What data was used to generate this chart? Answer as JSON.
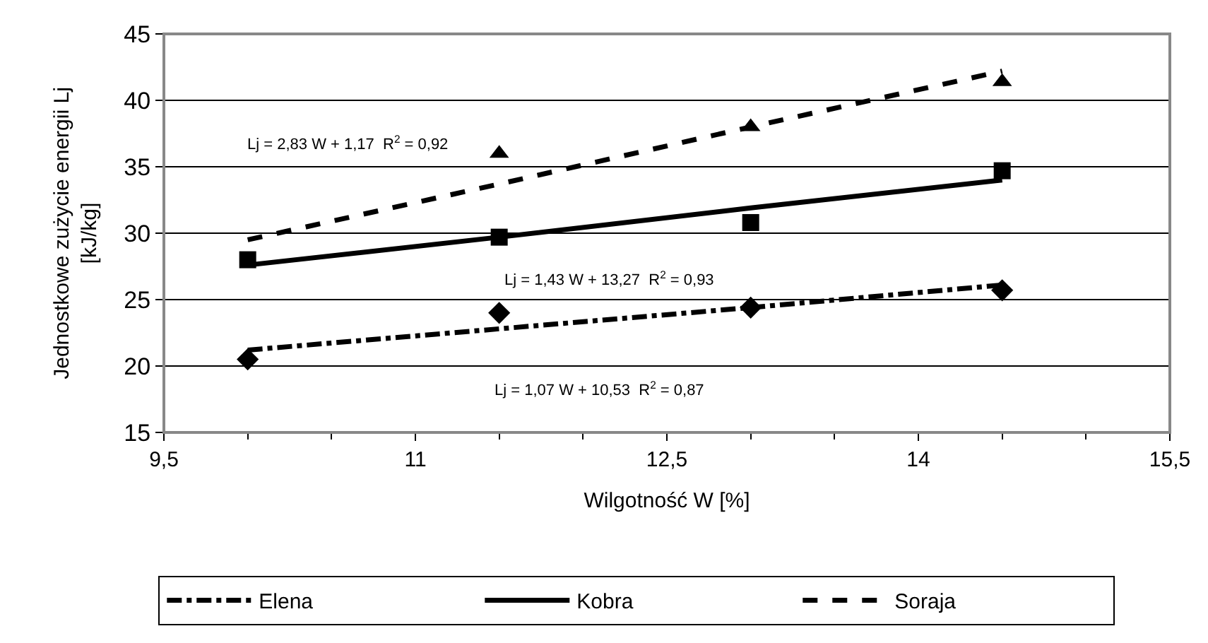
{
  "chart_data": {
    "type": "scatter",
    "xlabel": "Wilgotność W [%]",
    "ylabel": "Jednostkowe zużycie energii Lj\n[kJ/kg]",
    "x": [
      10,
      11.5,
      13,
      14.5
    ],
    "series": [
      {
        "marker": "diamond",
        "color": "#000000",
        "values": [
          20.5,
          24.0,
          24.4,
          25.7
        ]
      },
      {
        "marker": "square",
        "color": "#000000",
        "values": [
          28.0,
          29.7,
          30.8,
          34.7
        ]
      },
      {
        "marker": "triangle",
        "color": "#000000",
        "values": [
          null,
          36.0,
          38.0,
          41.4
        ]
      },
      {
        "type": "line",
        "name": "Elena",
        "line_style": "dashdot",
        "color": "#000000",
        "values": [
          21.2,
          22.8,
          24.4,
          26.1
        ]
      },
      {
        "type": "line",
        "name": "Kobra",
        "line_style": "solid",
        "color": "#000000",
        "values": [
          27.6,
          29.7,
          31.9,
          34.0
        ]
      },
      {
        "type": "line",
        "name": "Soraja",
        "line_style": "dashed",
        "color": "#000000",
        "values": [
          29.5,
          33.7,
          38.0,
          42.2
        ]
      }
    ],
    "annotations": [
      "Lj = 2,83 W + 1,17  R$^{2}$ = 0,92",
      "Lj = 1,43 W + 13,27  R$^{2}$ = 0,93",
      "Lj = 1,07 W + 10,53  R$^{2}$ = 0,87"
    ],
    "xlim": [
      9.5,
      15.5
    ],
    "xticks": [
      {
        "value": 9.5,
        "label": "9,5"
      },
      11,
      {
        "value": 12.5,
        "label": "12,5"
      },
      14,
      {
        "value": 15.5,
        "label": "15,5"
      }
    ],
    "ylim": [
      15,
      45
    ],
    "yticks": [
      15,
      20,
      25,
      30,
      35,
      40,
      45
    ],
    "grid": "y",
    "legend": "bottom"
  }
}
